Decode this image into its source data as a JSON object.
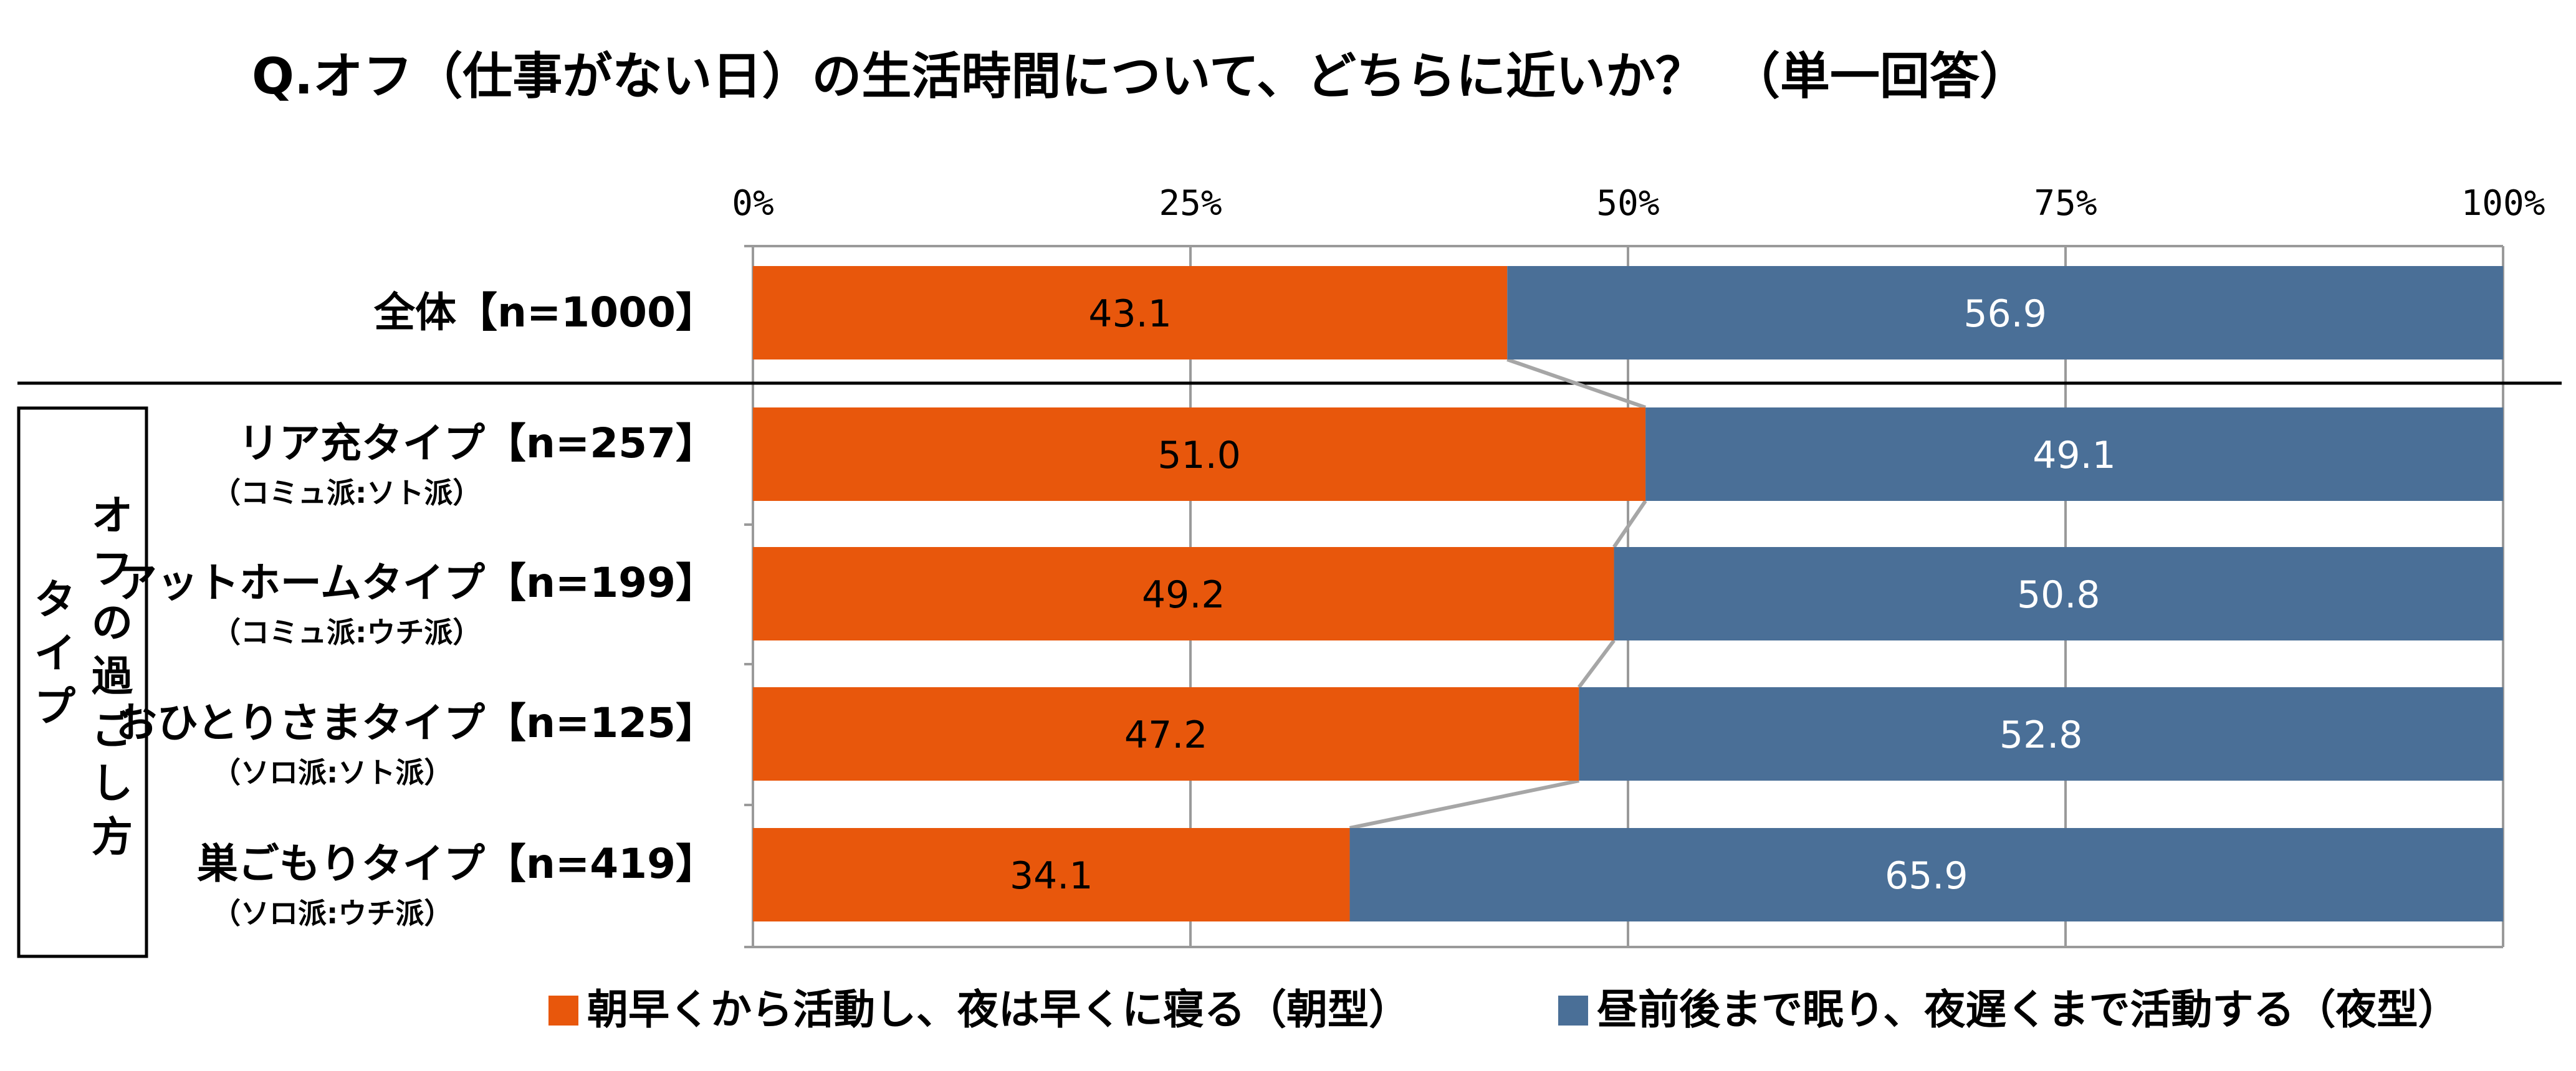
{
  "chart_data": {
    "type": "bar",
    "stacked": true,
    "orientation": "horizontal",
    "title": "Q.オフ（仕事がない日）の生活時間について、どちらに近いか？　（単一回答）",
    "x_ticks": [
      "0%",
      "25%",
      "50%",
      "75%",
      "100%"
    ],
    "xlim": [
      0,
      100
    ],
    "group_label": "オフの過ごし方タイプ",
    "categories": [
      {
        "label": "全体【n=1000】",
        "sub": ""
      },
      {
        "label": "リア充タイプ【n=257】",
        "sub": "（コミュ派:ソト派）"
      },
      {
        "label": "アットホームタイプ【n=199】",
        "sub": "（コミュ派:ウチ派）"
      },
      {
        "label": "おひとりさまタイプ【n=125】",
        "sub": "（ソロ派:ソト派）"
      },
      {
        "label": "巣ごもりタイプ【n=419】",
        "sub": "（ソロ派:ウチ派）"
      }
    ],
    "series": [
      {
        "name": "朝早くから活動し、夜は早くに寝る（朝型）",
        "color": "#E8570C",
        "values": [
          43.1,
          51.0,
          49.2,
          47.2,
          34.1
        ],
        "labels": [
          "43.1",
          "51.0",
          "49.2",
          "47.2",
          "34.1"
        ]
      },
      {
        "name": "昼前後まで眠り、夜遅くまで活動する（夜型）",
        "color": "#4A6F97",
        "values": [
          56.9,
          49.1,
          50.8,
          52.8,
          65.9
        ],
        "labels": [
          "56.9",
          "49.1",
          "50.8",
          "52.8",
          "65.9"
        ]
      }
    ],
    "legend_position": "bottom",
    "grid": true
  }
}
